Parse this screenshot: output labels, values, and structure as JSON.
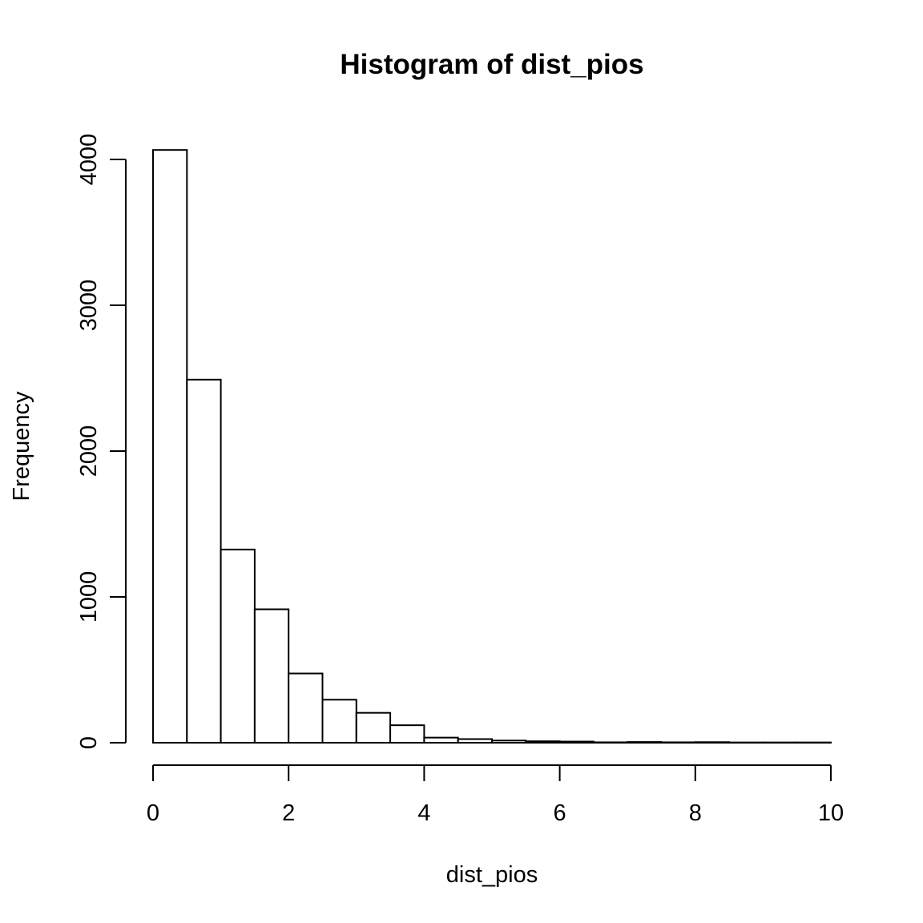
{
  "chart_data": {
    "type": "bar",
    "title": "Histogram of dist_pios",
    "xlabel": "dist_pios",
    "ylabel": "Frequency",
    "bin_edges": [
      0,
      0.5,
      1,
      1.5,
      2,
      2.5,
      3,
      3.5,
      4,
      4.5,
      5,
      5.5,
      6,
      6.5,
      7,
      7.5,
      8,
      8.5,
      9,
      9.5,
      10
    ],
    "values": [
      4065,
      2490,
      1325,
      915,
      475,
      295,
      205,
      120,
      35,
      25,
      15,
      10,
      8,
      3,
      5,
      3,
      4,
      2,
      2,
      2
    ],
    "xlim": [
      0,
      10
    ],
    "ylim": [
      0,
      4000
    ],
    "xticks": [
      0,
      2,
      4,
      6,
      8,
      10
    ],
    "yticks": [
      0,
      1000,
      2000,
      3000,
      4000
    ],
    "xtick_labels": [
      "0",
      "2",
      "4",
      "6",
      "8",
      "10"
    ],
    "ytick_labels": [
      "0",
      "1000",
      "2000",
      "3000",
      "4000"
    ],
    "grid": false,
    "legend": "none"
  }
}
